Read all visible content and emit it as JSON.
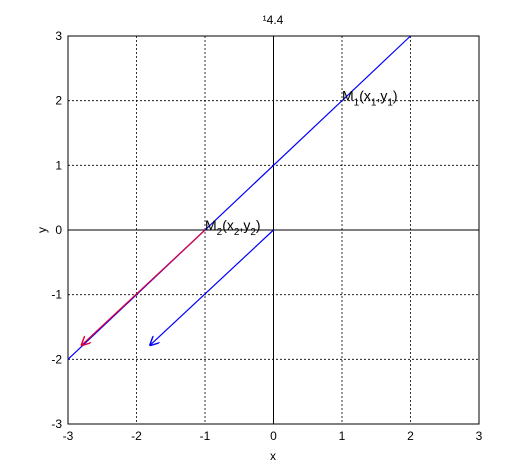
{
  "chart_data": {
    "type": "line",
    "title": "¹4.4",
    "x_label": "x",
    "y_label": "y",
    "xlim": [
      -3,
      3
    ],
    "ylim": [
      -3,
      3
    ],
    "xticks": [
      -3,
      -2,
      -1,
      0,
      1,
      2,
      3
    ],
    "yticks": [
      -3,
      -2,
      -1,
      0,
      1,
      2,
      3
    ],
    "grid": true,
    "series": [
      {
        "color": "#0000ff",
        "x": [
          -3,
          2
        ],
        "values": [
          -2,
          3
        ],
        "arrow": false
      },
      {
        "color": "#e0003c",
        "x": [
          -1,
          -2.8
        ],
        "values": [
          0,
          -1.78
        ],
        "arrow": true
      },
      {
        "color": "#0000ff",
        "x": [
          0,
          -1.8
        ],
        "values": [
          0,
          -1.78
        ],
        "arrow": true
      }
    ],
    "annotations": [
      {
        "x": 1,
        "y": 2,
        "parts": [
          "M",
          "1",
          "(x",
          "1",
          ",y",
          "1",
          ")"
        ]
      },
      {
        "x": -1,
        "y": 0,
        "parts": [
          "M",
          "2",
          "(x",
          "2",
          ",y",
          "2",
          ")"
        ]
      }
    ]
  }
}
